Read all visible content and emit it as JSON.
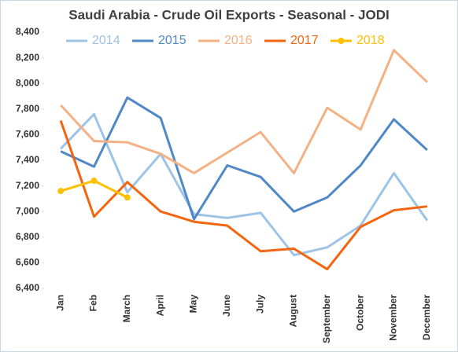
{
  "chart_data": {
    "type": "line",
    "title": "Saudi Arabia - Crude Oil Exports - Seasonal - JODI",
    "categories": [
      "Jan",
      "Feb",
      "March",
      "April",
      "May",
      "June",
      "July",
      "August",
      "September",
      "October",
      "November",
      "December"
    ],
    "series": [
      {
        "name": "2014",
        "color": "#9dc3e6",
        "values": [
          7490,
          7760,
          7150,
          7450,
          6980,
          6950,
          6990,
          6660,
          6720,
          6890,
          7300,
          6930
        ]
      },
      {
        "name": "2015",
        "color": "#4f88c6",
        "values": [
          7470,
          7350,
          7890,
          7730,
          6940,
          7360,
          7270,
          7000,
          7110,
          7360,
          7720,
          7480
        ]
      },
      {
        "name": "2016",
        "color": "#f4b183",
        "values": [
          7830,
          7550,
          7540,
          7450,
          7300,
          7460,
          7620,
          7300,
          7810,
          7640,
          8260,
          8010
        ]
      },
      {
        "name": "2017",
        "color": "#f4650f",
        "values": [
          7710,
          6960,
          7230,
          7000,
          6920,
          6890,
          6690,
          6710,
          6550,
          6880,
          7010,
          7040
        ]
      },
      {
        "name": "2018",
        "color": "#ffc000",
        "markers": true,
        "values": [
          7160,
          7240,
          7110,
          null,
          null,
          null,
          null,
          null,
          null,
          null,
          null,
          null
        ]
      }
    ],
    "ylim": [
      6400,
      8400
    ],
    "yticks": [
      {
        "value": 6400,
        "label": "6,400"
      },
      {
        "value": 6600,
        "label": "6,600"
      },
      {
        "value": 6800,
        "label": "6,800"
      },
      {
        "value": 7000,
        "label": "7,000"
      },
      {
        "value": 7200,
        "label": "7,200"
      },
      {
        "value": 7400,
        "label": "7,400"
      },
      {
        "value": 7600,
        "label": "7,600"
      },
      {
        "value": 7800,
        "label": "7,800"
      },
      {
        "value": 8000,
        "label": "8,000"
      },
      {
        "value": 8200,
        "label": "8,200"
      },
      {
        "value": 8400,
        "label": "8,400"
      }
    ],
    "grid": false
  }
}
